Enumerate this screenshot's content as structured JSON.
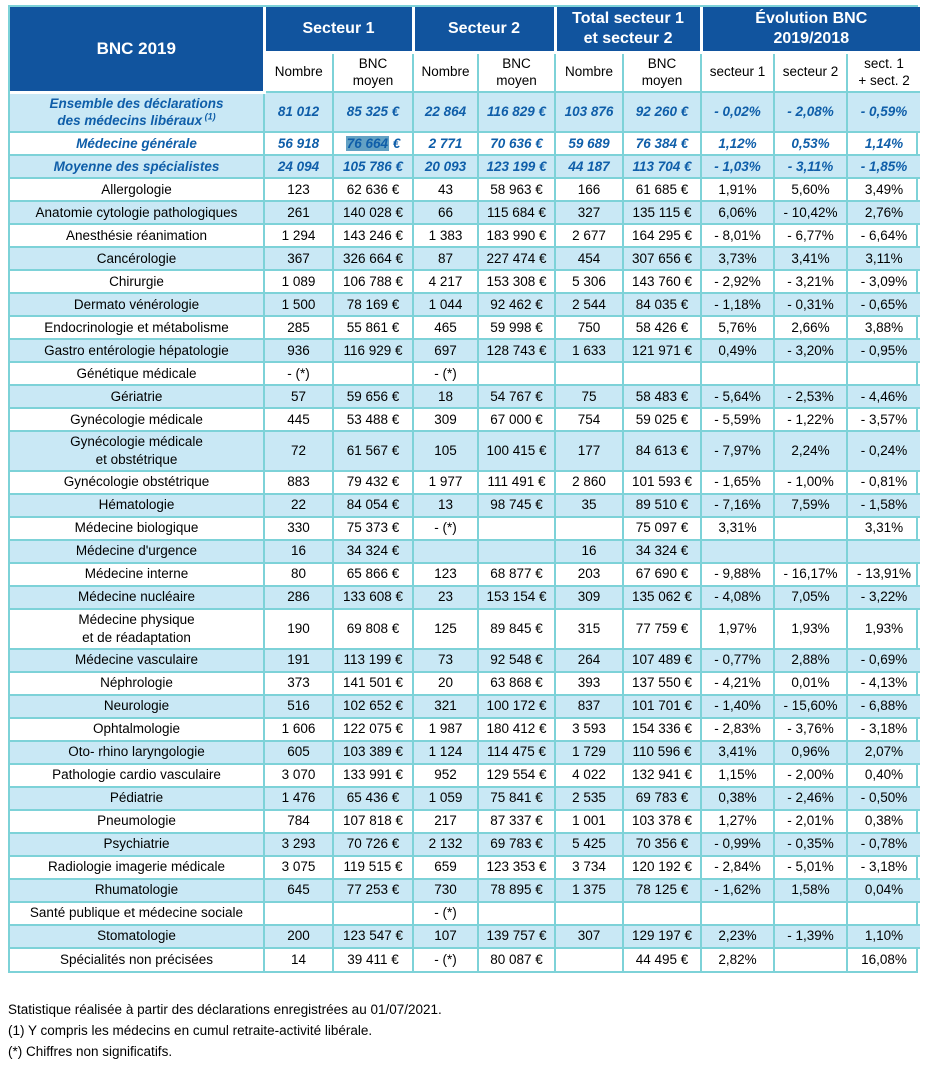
{
  "colors": {
    "header_blue": "#11549E",
    "row_shade": "#C9E8F5",
    "grid_border": "#7DD2D8",
    "summary_text_blue": "#0F5EA9",
    "selection_highlight": "#63A1C4"
  },
  "table": {
    "title": "BNC 2019",
    "groups": [
      {
        "label": "Secteur 1",
        "span": 2
      },
      {
        "label": "Secteur 2",
        "span": 2
      },
      {
        "label": "Total secteur 1\net secteur 2",
        "span": 2
      },
      {
        "label": "Évolution BNC\n2019/2018",
        "span": 3
      }
    ],
    "sub_headers": [
      "Nombre",
      "BNC\nmoyen",
      "Nombre",
      "BNC\nmoyen",
      "Nombre",
      "BNC\nmoyen",
      "secteur 1",
      "secteur 2",
      "sect. 1\n+ sect. 2"
    ],
    "rows": [
      {
        "label": "Ensemble des déclarations\ndes médecins libéraux",
        "sup": "(1)",
        "summary": true,
        "cells": [
          "81 012",
          "85 325 €",
          "22 864",
          "116 829 €",
          "103 876",
          "92 260 €",
          "- 0,02%",
          "- 2,08%",
          "- 0,59%"
        ]
      },
      {
        "label": "Médecine générale",
        "summary": true,
        "cells": [
          "56 918",
          {
            "sel": "76 664",
            "rest": " €"
          },
          "2 771",
          "70 636 €",
          "59 689",
          "76 384 €",
          "1,12%",
          "0,53%",
          "1,14%"
        ]
      },
      {
        "label": "Moyenne des spécialistes",
        "summary": true,
        "cells": [
          "24 094",
          "105 786 €",
          "20 093",
          "123 199 €",
          "44 187",
          "113 704 €",
          "- 1,03%",
          "- 3,11%",
          "- 1,85%"
        ]
      },
      {
        "label": "Allergologie",
        "cells": [
          "123",
          "62 636 €",
          "43",
          "58 963 €",
          "166",
          "61 685 €",
          "1,91%",
          "5,60%",
          "3,49%"
        ]
      },
      {
        "label": "Anatomie cytologie pathologiques",
        "cells": [
          "261",
          "140 028 €",
          "66",
          "115 684 €",
          "327",
          "135 115 €",
          "6,06%",
          "- 10,42%",
          "2,76%"
        ]
      },
      {
        "label": "Anesthésie réanimation",
        "cells": [
          "1 294",
          "143 246 €",
          "1 383",
          "183 990 €",
          "2 677",
          "164 295 €",
          "- 8,01%",
          "- 6,77%",
          "- 6,64%"
        ]
      },
      {
        "label": "Cancérologie",
        "cells": [
          "367",
          "326 664 €",
          "87",
          "227 474 €",
          "454",
          "307 656 €",
          "3,73%",
          "3,41%",
          "3,11%"
        ]
      },
      {
        "label": "Chirurgie",
        "cells": [
          "1 089",
          "106 788 €",
          "4 217",
          "153 308 €",
          "5 306",
          "143 760 €",
          "- 2,92%",
          "- 3,21%",
          "- 3,09%"
        ]
      },
      {
        "label": "Dermato vénérologie",
        "cells": [
          "1 500",
          "78 169 €",
          "1 044",
          "92 462 €",
          "2 544",
          "84 035 €",
          "- 1,18%",
          "- 0,31%",
          "- 0,65%"
        ]
      },
      {
        "label": "Endocrinologie et métabolisme",
        "cells": [
          "285",
          "55 861 €",
          "465",
          "59 998 €",
          "750",
          "58 426 €",
          "5,76%",
          "2,66%",
          "3,88%"
        ]
      },
      {
        "label": "Gastro entérologie hépatologie",
        "cells": [
          "936",
          "116 929 €",
          "697",
          "128 743 €",
          "1 633",
          "121 971 €",
          "0,49%",
          "- 3,20%",
          "- 0,95%"
        ]
      },
      {
        "label": "Génétique médicale",
        "cells": [
          "- (*)",
          "",
          "- (*)",
          "",
          "",
          "",
          "",
          "",
          ""
        ]
      },
      {
        "label": "Gériatrie",
        "cells": [
          "57",
          "59 656 €",
          "18",
          "54 767 €",
          "75",
          "58 483 €",
          "- 5,64%",
          "- 2,53%",
          "- 4,46%"
        ]
      },
      {
        "label": "Gynécologie médicale",
        "cells": [
          "445",
          "53 488 €",
          "309",
          "67 000 €",
          "754",
          "59 025 €",
          "- 5,59%",
          "- 1,22%",
          "- 3,57%"
        ]
      },
      {
        "label": "Gynécologie médicale\net obstétrique",
        "cells": [
          "72",
          "61 567 €",
          "105",
          "100 415 €",
          "177",
          "84 613 €",
          "- 7,97%",
          "2,24%",
          "- 0,24%"
        ]
      },
      {
        "label": "Gynécologie obstétrique",
        "cells": [
          "883",
          "79 432 €",
          "1 977",
          "111 491 €",
          "2 860",
          "101 593 €",
          "- 1,65%",
          "- 1,00%",
          "- 0,81%"
        ]
      },
      {
        "label": "Hématologie",
        "cells": [
          "22",
          "84 054 €",
          "13",
          "98 745 €",
          "35",
          "89 510 €",
          "- 7,16%",
          "7,59%",
          "- 1,58%"
        ]
      },
      {
        "label": "Médecine biologique",
        "cells": [
          "330",
          "75 373 €",
          "- (*)",
          "",
          "",
          "75 097 €",
          "3,31%",
          "",
          "3,31%"
        ]
      },
      {
        "label": "Médecine d'urgence",
        "cells": [
          "16",
          "34 324 €",
          "",
          "",
          "16",
          "34 324 €",
          "",
          "",
          ""
        ]
      },
      {
        "label": "Médecine interne",
        "cells": [
          "80",
          "65 866 €",
          "123",
          "68 877 €",
          "203",
          "67 690 €",
          "- 9,88%",
          "- 16,17%",
          "- 13,91%"
        ]
      },
      {
        "label": "Médecine nucléaire",
        "cells": [
          "286",
          "133 608 €",
          "23",
          "153 154 €",
          "309",
          "135 062 €",
          "- 4,08%",
          "7,05%",
          "- 3,22%"
        ]
      },
      {
        "label": "Médecine physique\net de réadaptation",
        "cells": [
          "190",
          "69 808 €",
          "125",
          "89 845 €",
          "315",
          "77 759 €",
          "1,97%",
          "1,93%",
          "1,93%"
        ]
      },
      {
        "label": "Médecine vasculaire",
        "cells": [
          "191",
          "113 199 €",
          "73",
          "92 548 €",
          "264",
          "107 489 €",
          "- 0,77%",
          "2,88%",
          "- 0,69%"
        ]
      },
      {
        "label": "Néphrologie",
        "cells": [
          "373",
          "141 501 €",
          "20",
          "63 868 €",
          "393",
          "137 550 €",
          "- 4,21%",
          "0,01%",
          "- 4,13%"
        ]
      },
      {
        "label": "Neurologie",
        "cells": [
          "516",
          "102 652 €",
          "321",
          "100 172 €",
          "837",
          "101 701 €",
          "- 1,40%",
          "- 15,60%",
          "- 6,88%"
        ]
      },
      {
        "label": "Ophtalmologie",
        "cells": [
          "1 606",
          "122 075 €",
          "1 987",
          "180 412 €",
          "3 593",
          "154 336 €",
          "- 2,83%",
          "- 3,76%",
          "- 3,18%"
        ]
      },
      {
        "label": "Oto- rhino laryngologie",
        "cells": [
          "605",
          "103 389 €",
          "1 124",
          "114 475 €",
          "1 729",
          "110 596 €",
          "3,41%",
          "0,96%",
          "2,07%"
        ]
      },
      {
        "label": "Pathologie cardio vasculaire",
        "cells": [
          "3 070",
          "133 991 €",
          "952",
          "129 554 €",
          "4 022",
          "132 941 €",
          "1,15%",
          "- 2,00%",
          "0,40%"
        ]
      },
      {
        "label": "Pédiatrie",
        "cells": [
          "1 476",
          "65 436 €",
          "1 059",
          "75 841 €",
          "2 535",
          "69 783 €",
          "0,38%",
          "- 2,46%",
          "- 0,50%"
        ]
      },
      {
        "label": "Pneumologie",
        "cells": [
          "784",
          "107 818 €",
          "217",
          "87 337 €",
          "1 001",
          "103 378 €",
          "1,27%",
          "- 2,01%",
          "0,38%"
        ]
      },
      {
        "label": "Psychiatrie",
        "cells": [
          "3 293",
          "70 726 €",
          "2 132",
          "69 783 €",
          "5 425",
          "70 356 €",
          "- 0,99%",
          "- 0,35%",
          "- 0,78%"
        ]
      },
      {
        "label": "Radiologie imagerie médicale",
        "cells": [
          "3 075",
          "119 515 €",
          "659",
          "123 353 €",
          "3 734",
          "120 192 €",
          "- 2,84%",
          "- 5,01%",
          "- 3,18%"
        ]
      },
      {
        "label": "Rhumatologie",
        "cells": [
          "645",
          "77 253 €",
          "730",
          "78 895 €",
          "1 375",
          "78 125 €",
          "- 1,62%",
          "1,58%",
          "0,04%"
        ]
      },
      {
        "label": "Santé publique et médecine sociale",
        "cells": [
          "",
          "",
          "- (*)",
          "",
          "",
          "",
          "",
          "",
          ""
        ]
      },
      {
        "label": "Stomatologie",
        "cells": [
          "200",
          "123 547 €",
          "107",
          "139 757 €",
          "307",
          "129 197 €",
          "2,23%",
          "- 1,39%",
          "1,10%"
        ]
      },
      {
        "label": "Spécialités non précisées",
        "cells": [
          "14",
          "39 411 €",
          "- (*)",
          "80 087 €",
          "",
          "44 495 €",
          "2,82%",
          "",
          "16,08%"
        ]
      }
    ]
  },
  "footnotes": [
    "Statistique réalisée à partir des déclarations enregistrées au 01/07/2021.",
    "(1) Y compris les médecins en cumul retraite-activité libérale.",
    "(*) Chiffres non significatifs."
  ]
}
